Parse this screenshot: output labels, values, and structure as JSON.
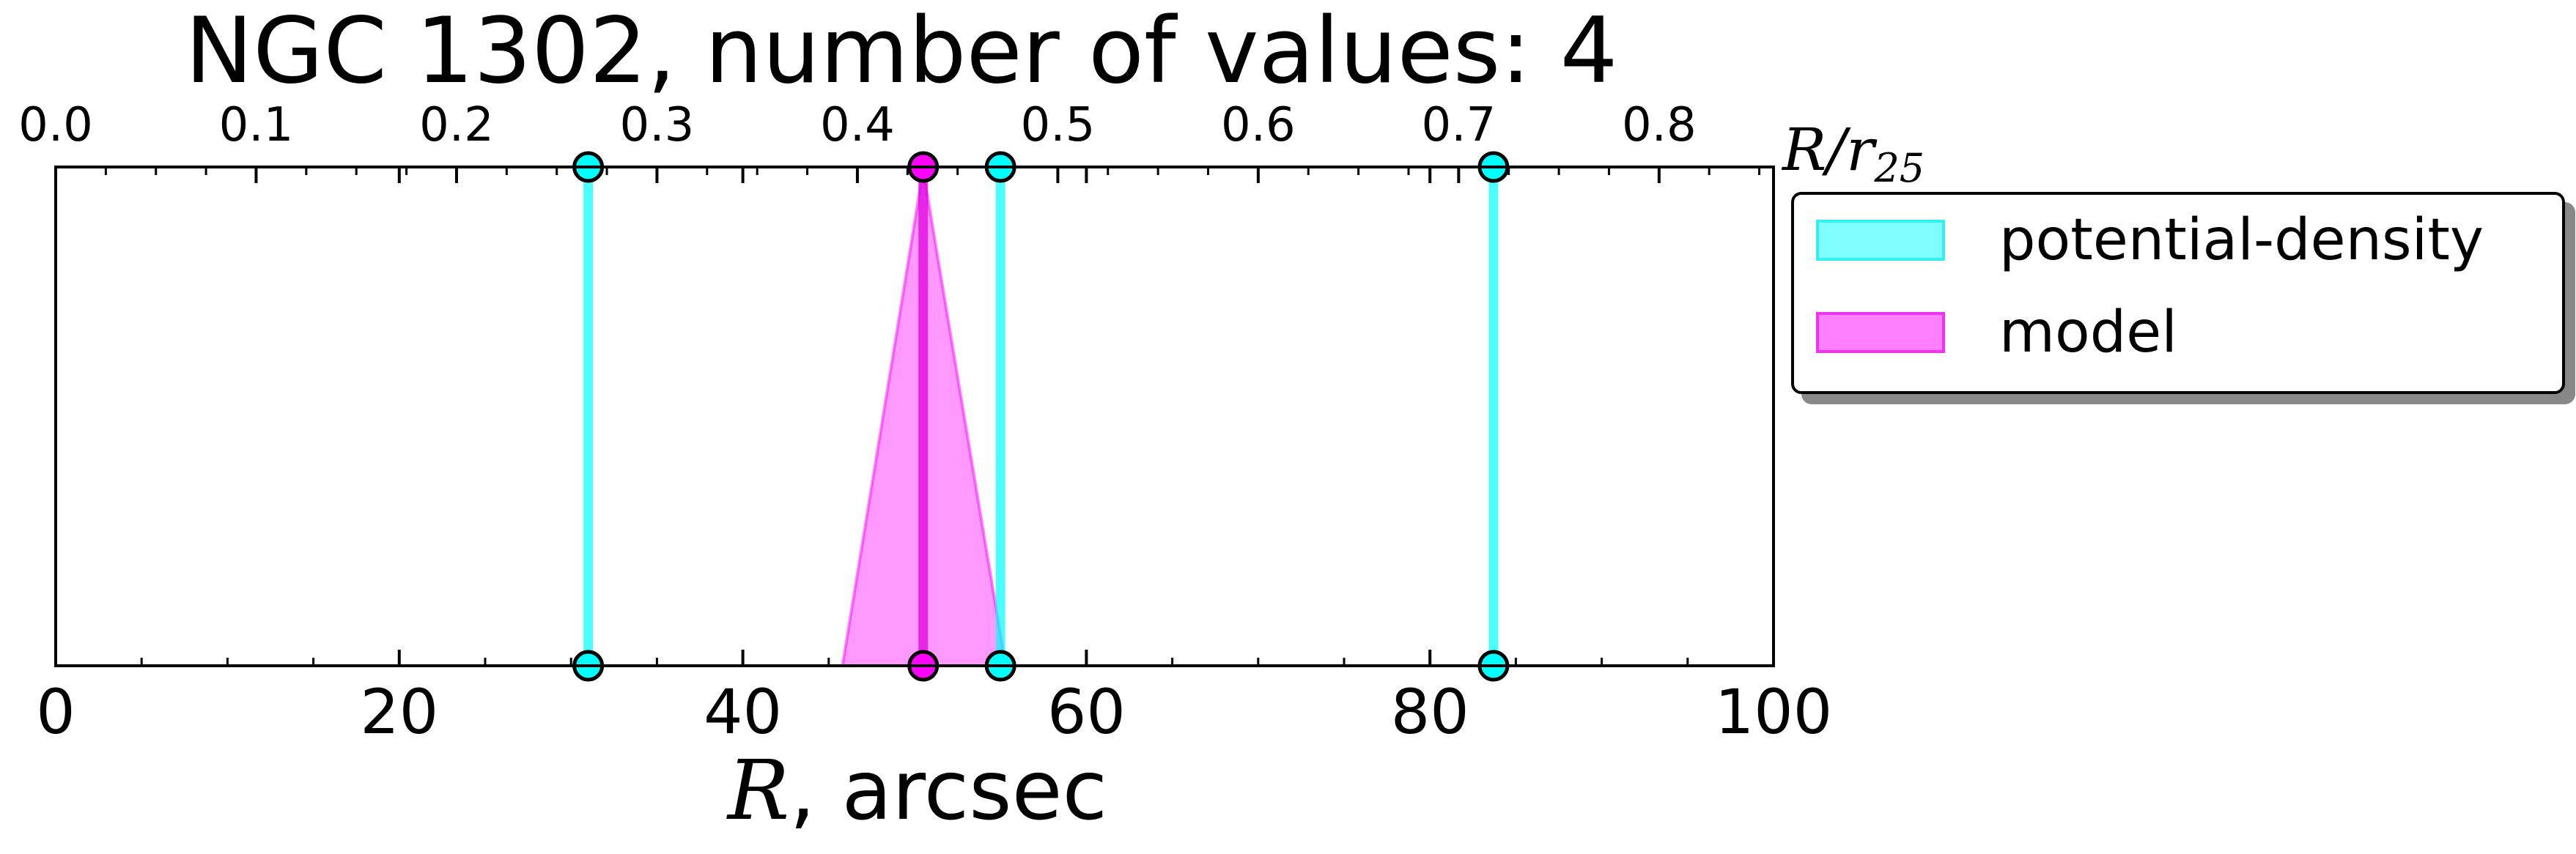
{
  "chart_data": {
    "type": "line",
    "title": "NGC 1302, number of values: 4",
    "xlabel_symbol": "R",
    "xlabel_rest": ", arcsec",
    "top_axis_label": "R/r",
    "top_axis_label_sub": "25",
    "xlim": [
      0,
      100
    ],
    "xticks": [
      "0",
      "20",
      "40",
      "60",
      "80",
      "100"
    ],
    "top_xlim": [
      0,
      0.8571
    ],
    "top_xticks": [
      "0.0",
      "0.1",
      "0.2",
      "0.3",
      "0.4",
      "0.5",
      "0.6",
      "0.7",
      "0.8"
    ],
    "grid": false,
    "legend_position": "upper-right-outside",
    "series": [
      {
        "name": "potential-density",
        "color": "#00ffff",
        "kind": "vertical-lines",
        "x": [
          31,
          55,
          83.7
        ]
      },
      {
        "name": "model",
        "color": "#ff00ff",
        "kind": "vertical-line-with-uncertainty",
        "x": [
          50.5
        ],
        "x_lower": 45.8,
        "x_upper": 55.3
      }
    ]
  }
}
